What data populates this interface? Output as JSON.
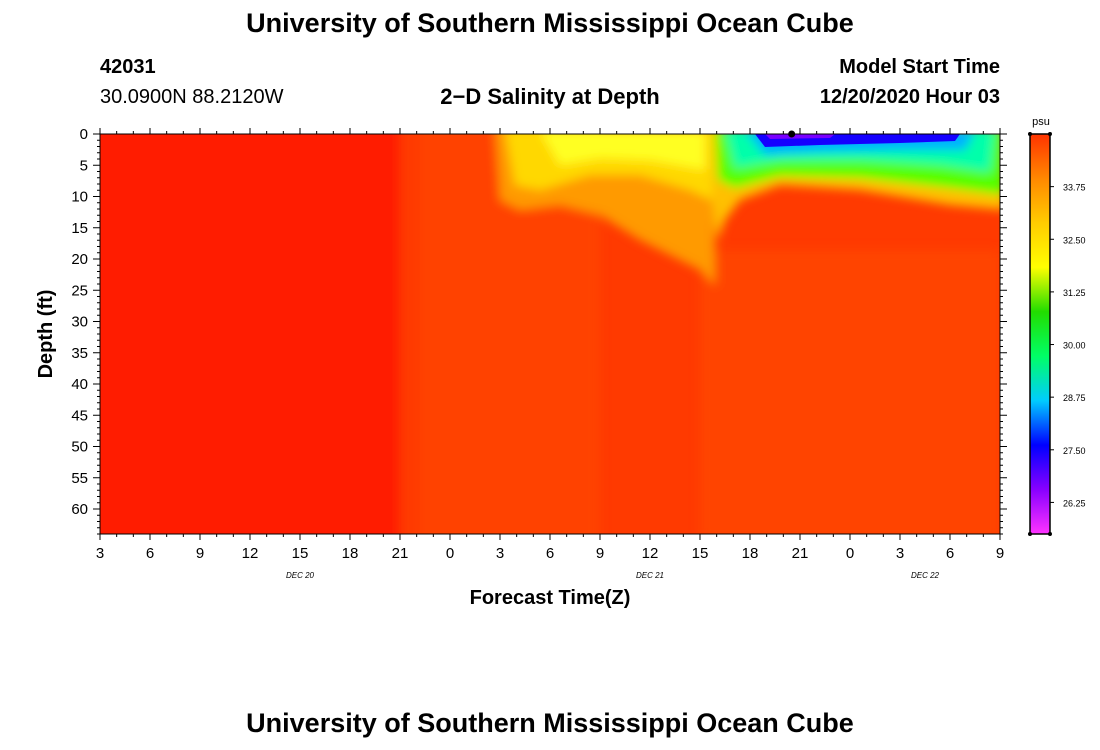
{
  "header": {
    "title": "University of Southern Mississippi Ocean Cube",
    "station_id": "42031",
    "coordinates": "30.0900N 88.2120W",
    "plot_title": "2−D Salinity at Depth",
    "model_start_label": "Model Start Time",
    "model_start_value": "12/20/2020 Hour 03"
  },
  "footer": {
    "title": "University of Southern Mississippi Ocean Cube"
  },
  "chart_data": {
    "type": "heatmap",
    "title": "2−D Salinity at Depth",
    "xlabel": "Forecast Time(Z)",
    "ylabel": "Depth (ft)",
    "x_unit_hours_from_start": true,
    "xlim": [
      0,
      54
    ],
    "ylim": [
      0,
      64
    ],
    "y_reversed": true,
    "x_tick_labels": [
      "3",
      "6",
      "9",
      "12",
      "15",
      "18",
      "21",
      "0",
      "3",
      "6",
      "9",
      "12",
      "15",
      "18",
      "21",
      "0",
      "3",
      "6",
      "9"
    ],
    "y_tick_labels": [
      "0",
      "5",
      "10",
      "15",
      "20",
      "25",
      "30",
      "35",
      "40",
      "45",
      "50",
      "55",
      "60"
    ],
    "date_labels": [
      {
        "text": "DEC 20",
        "x_hour": 12
      },
      {
        "text": "DEC 21",
        "x_hour": 33
      },
      {
        "text": "DEC 22",
        "x_hour": 49.5
      }
    ],
    "colorbar": {
      "unit": "psu",
      "range": [
        25.5,
        35.0
      ],
      "tick_labels": [
        "33.75",
        "32.50",
        "31.25",
        "30.00",
        "28.75",
        "27.50",
        "26.25"
      ],
      "colors": [
        "#ff33ff",
        "#8800ff",
        "#0000ff",
        "#00ccff",
        "#00ff66",
        "#22dd00",
        "#ffff00",
        "#ffcc00",
        "#ff8800",
        "#ff3300"
      ]
    },
    "field_description": "Salinity mostly 34.5-35 psu (red/orange); fresher lens 33-34 psu in upper 10-20 ft from hour 0 to 15 of Dec 21; strongly fresh surface layer (26-31 psu) above 10 ft after hour 16 Dec 21",
    "min_marker": {
      "x_hour": 41.5,
      "depth": 0
    }
  },
  "colors": {
    "background": "#ffffff",
    "text": "#000000"
  }
}
